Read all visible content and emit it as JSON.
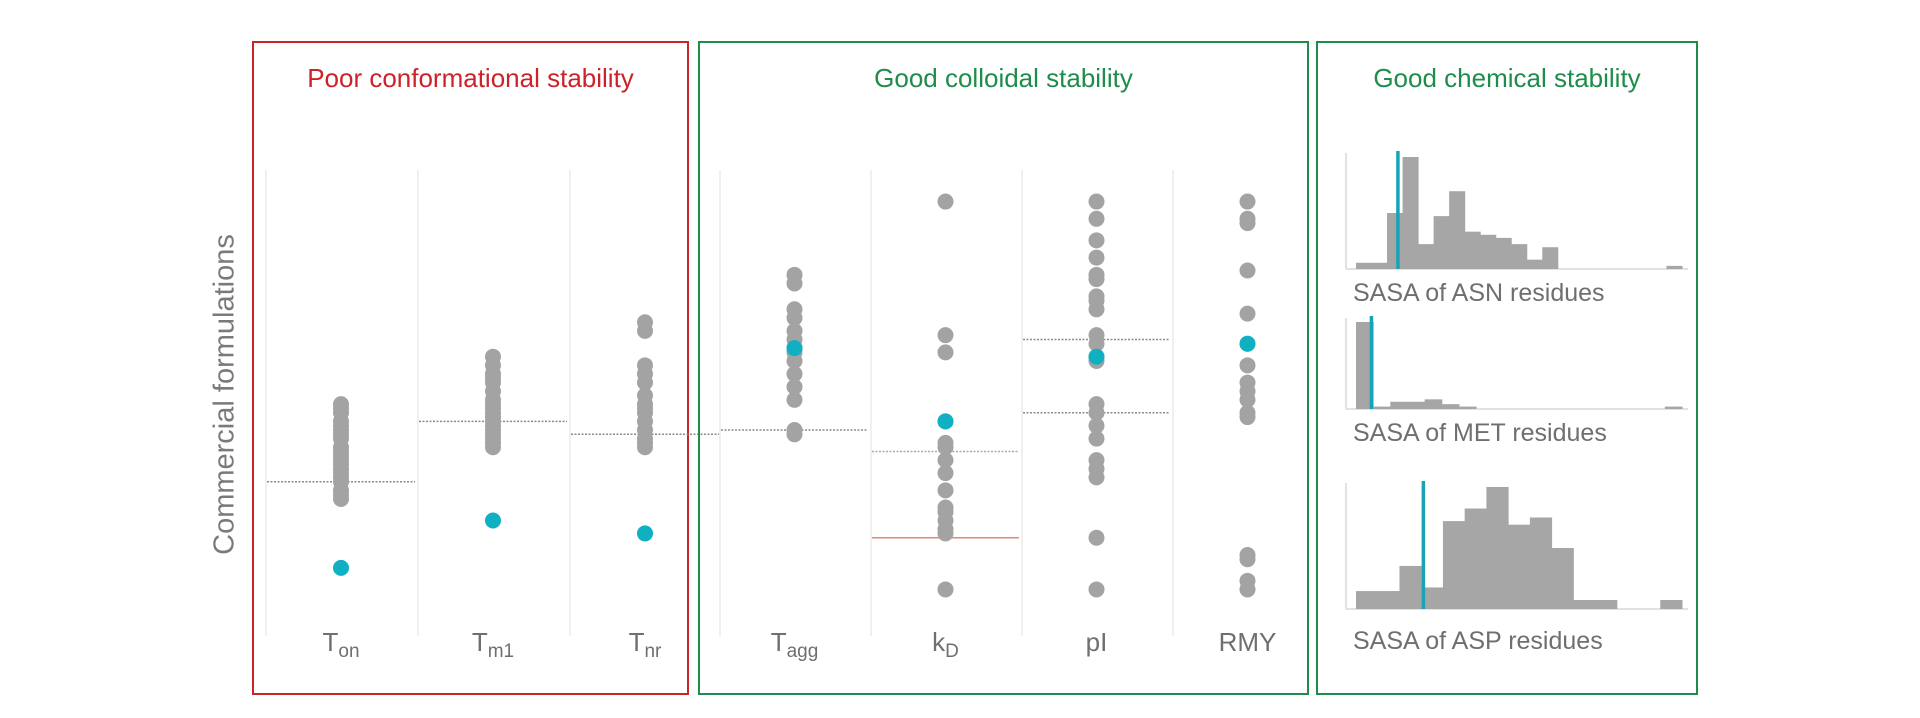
{
  "y_axis_label": "Commercial formulations",
  "colors": {
    "poor": "#cc2229",
    "good": "#1e8c4a",
    "dot": "#a3a3a3",
    "highlight": "#0fb0c2",
    "hist_bar": "#a6a6a6",
    "hist_marker": "#19a3b8"
  },
  "panels": [
    {
      "title": "Poor conformational stability",
      "status": "poor"
    },
    {
      "title": "Good colloidal stability",
      "status": "good"
    },
    {
      "title": "Good chemical stability",
      "status": "good"
    }
  ],
  "chart_data": [
    {
      "type": "scatter",
      "description": "strip plots, relative values (0 = bottom, 100 = top)",
      "ylim": [
        0,
        100
      ],
      "columns": [
        {
          "label": "T",
          "sub": "on",
          "values": [
            48,
            47,
            46,
            44,
            43,
            42,
            41,
            40,
            38,
            37,
            36,
            35,
            34,
            33,
            32,
            31,
            30,
            28,
            27,
            26
          ],
          "highlight": 10,
          "threshold": 30,
          "threshold_color": "gray"
        },
        {
          "label": "T",
          "sub": "m1",
          "values": [
            59,
            57,
            55,
            54,
            53,
            51,
            49,
            48,
            47,
            46,
            45,
            44,
            43,
            42,
            41,
            40,
            39,
            38
          ],
          "highlight": 21,
          "threshold": 44,
          "threshold_color": "gray"
        },
        {
          "label": "T",
          "sub": "nr",
          "values": [
            67,
            65,
            57,
            55,
            53,
            50,
            48,
            47,
            46,
            44,
            42,
            40,
            39,
            38
          ],
          "highlight": 18,
          "threshold": 41,
          "threshold_color": "gray"
        },
        {
          "label": "T",
          "sub": "agg",
          "values": [
            78,
            76,
            70,
            68,
            65,
            63,
            61,
            60,
            58,
            55,
            52,
            49,
            42,
            41
          ],
          "highlight": 61,
          "threshold": 42,
          "threshold_color": "gray"
        },
        {
          "label": "k",
          "sub": "D",
          "values": [
            95,
            64,
            60,
            44,
            39,
            38,
            35,
            32,
            28,
            24,
            23,
            21,
            19,
            18,
            5
          ],
          "highlight": 44,
          "threshold": 37,
          "threshold_color": "red",
          "second_threshold": 17
        },
        {
          "label": "pI",
          "sub": "",
          "values": [
            95,
            91,
            86,
            82,
            78,
            77,
            73,
            72,
            70,
            64,
            62,
            59,
            58,
            48,
            46,
            43,
            40,
            35,
            33,
            31,
            17,
            5
          ],
          "highlight": 59,
          "threshold": 63,
          "threshold_color": "gray",
          "second_threshold": 46
        },
        {
          "label": "RMY",
          "sub": "",
          "values": [
            95,
            91,
            90,
            79,
            69,
            62,
            57,
            53,
            51,
            49,
            46,
            45,
            13,
            12,
            7,
            5
          ],
          "highlight": 62,
          "threshold": null,
          "threshold_color": "none"
        }
      ]
    },
    {
      "type": "bar",
      "title": "SASA of ASN residues",
      "values": [
        2,
        2,
        18,
        36,
        8,
        17,
        25,
        12,
        11,
        10,
        8,
        3,
        7,
        0,
        0,
        0,
        0,
        0,
        0,
        0,
        1
      ],
      "marker_bin": 2.7
    },
    {
      "type": "bar",
      "title": "SASA of MET residues",
      "values": [
        36,
        1,
        3,
        3,
        4,
        2,
        1,
        0,
        0,
        0,
        0,
        0,
        0,
        0,
        0,
        0,
        0,
        0,
        1
      ],
      "marker_bin": 0.9
    },
    {
      "type": "bar",
      "title": "SASA of ASP residues",
      "values": [
        10,
        10,
        24,
        12,
        49,
        56,
        68,
        47,
        51,
        34,
        5,
        5,
        0,
        0,
        5
      ],
      "marker_bin": 3.1
    }
  ]
}
